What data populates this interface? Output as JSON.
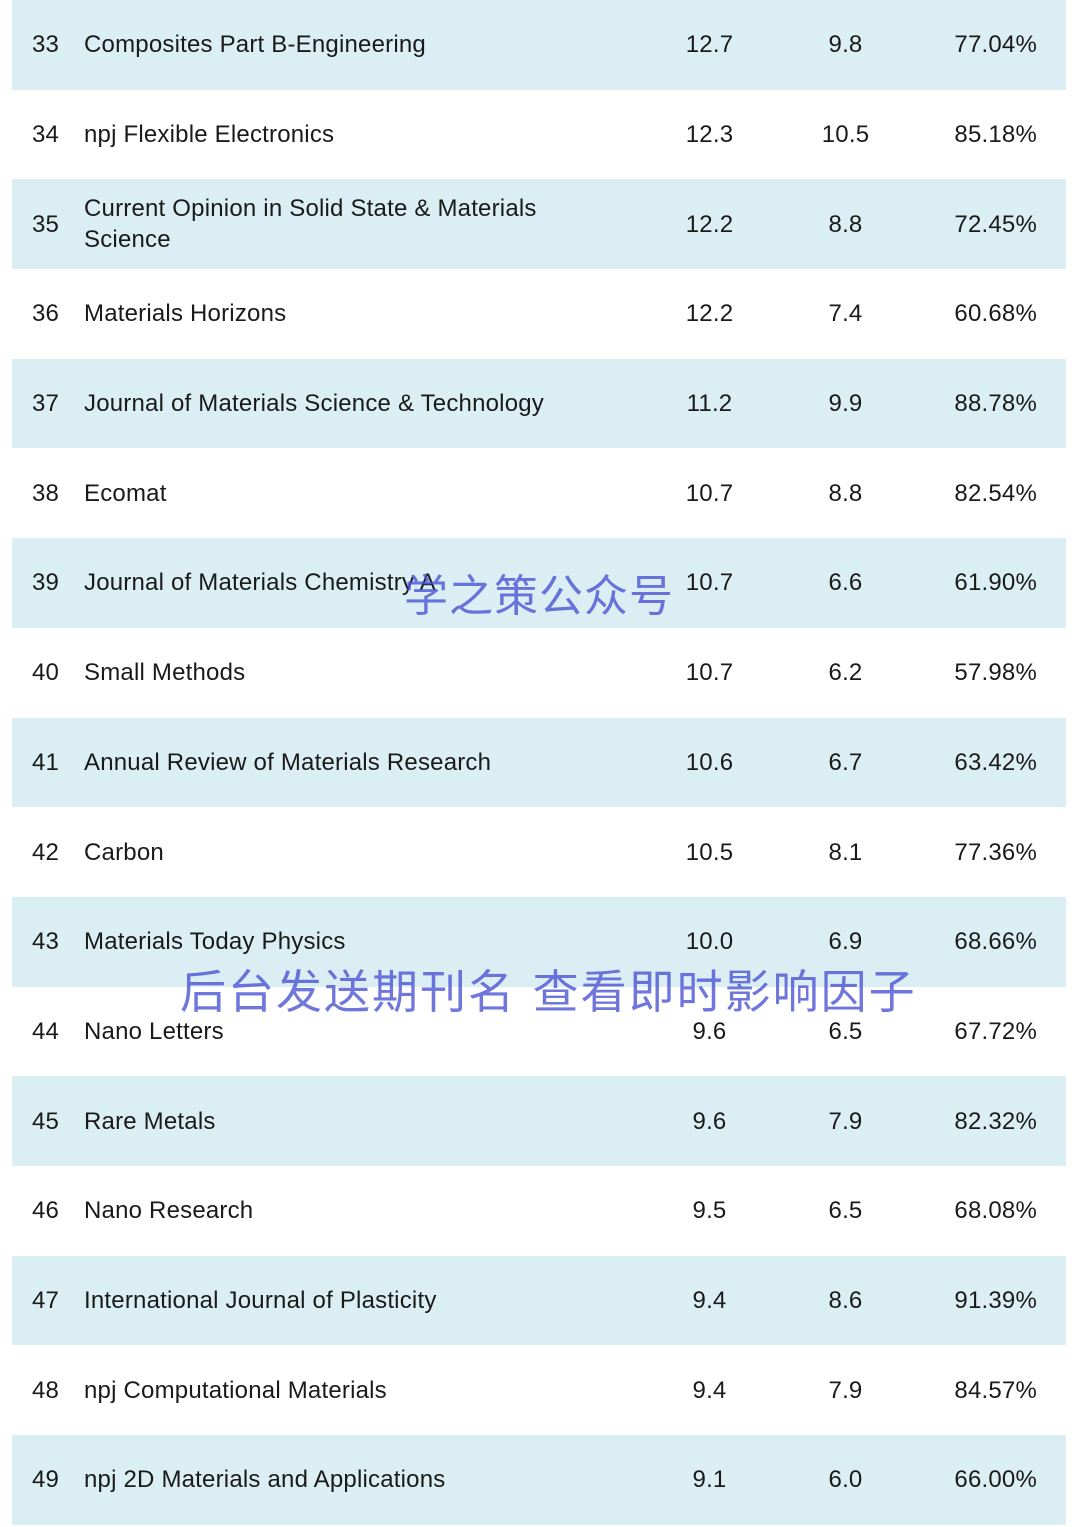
{
  "rows": [
    {
      "rank": "33",
      "journal": "Composites Part B-Engineering",
      "v1": "12.7",
      "v2": "9.8",
      "pct": "77.04%"
    },
    {
      "rank": "34",
      "journal": "npj Flexible Electronics",
      "v1": "12.3",
      "v2": "10.5",
      "pct": "85.18%"
    },
    {
      "rank": "35",
      "journal": "Current Opinion in Solid State & Materials Science",
      "v1": "12.2",
      "v2": "8.8",
      "pct": "72.45%"
    },
    {
      "rank": "36",
      "journal": "Materials Horizons",
      "v1": "12.2",
      "v2": "7.4",
      "pct": "60.68%"
    },
    {
      "rank": "37",
      "journal": "Journal of Materials Science & Technology",
      "v1": "11.2",
      "v2": "9.9",
      "pct": "88.78%"
    },
    {
      "rank": "38",
      "journal": "Ecomat",
      "v1": "10.7",
      "v2": "8.8",
      "pct": "82.54%"
    },
    {
      "rank": "39",
      "journal": "Journal of Materials Chemistry A",
      "v1": "10.7",
      "v2": "6.6",
      "pct": "61.90%"
    },
    {
      "rank": "40",
      "journal": "Small Methods",
      "v1": "10.7",
      "v2": "6.2",
      "pct": "57.98%"
    },
    {
      "rank": "41",
      "journal": "Annual Review of Materials Research",
      "v1": "10.6",
      "v2": "6.7",
      "pct": "63.42%"
    },
    {
      "rank": "42",
      "journal": "Carbon",
      "v1": "10.5",
      "v2": "8.1",
      "pct": "77.36%"
    },
    {
      "rank": "43",
      "journal": "Materials Today Physics",
      "v1": "10.0",
      "v2": "6.9",
      "pct": "68.66%"
    },
    {
      "rank": "44",
      "journal": "Nano Letters",
      "v1": "9.6",
      "v2": "6.5",
      "pct": "67.72%"
    },
    {
      "rank": "45",
      "journal": "Rare Metals",
      "v1": "9.6",
      "v2": "7.9",
      "pct": "82.32%"
    },
    {
      "rank": "46",
      "journal": "Nano Research",
      "v1": "9.5",
      "v2": "6.5",
      "pct": "68.08%"
    },
    {
      "rank": "47",
      "journal": "International Journal of Plasticity",
      "v1": "9.4",
      "v2": "8.6",
      "pct": "91.39%"
    },
    {
      "rank": "48",
      "journal": "npj Computational Materials",
      "v1": "9.4",
      "v2": "7.9",
      "pct": "84.57%"
    },
    {
      "rank": "49",
      "journal": "npj 2D Materials and Applications",
      "v1": "9.1",
      "v2": "6.0",
      "pct": "66.00%"
    }
  ],
  "watermarks": {
    "account": "学之策公众号",
    "promo": "后台发送期刊名 查看即时影响因子"
  },
  "colors": {
    "shaded_row": "#dbeef4",
    "watermark": "#4650d2"
  }
}
